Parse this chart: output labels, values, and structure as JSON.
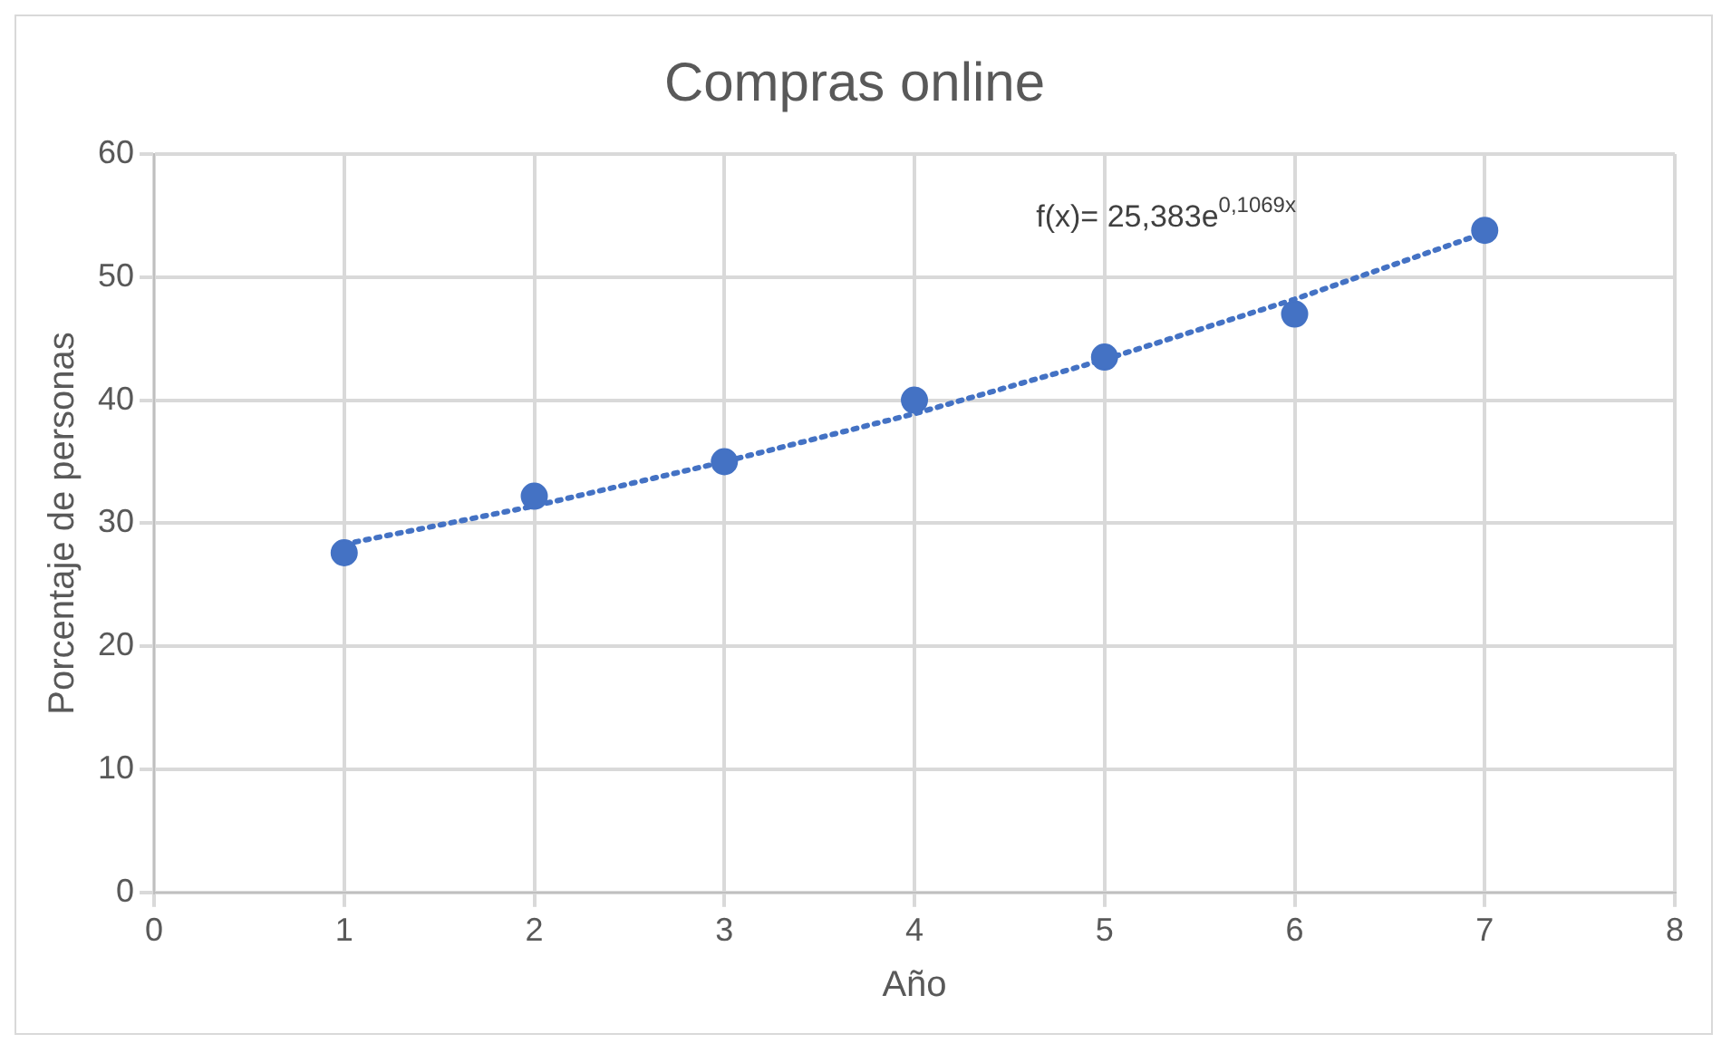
{
  "chart_data": {
    "type": "scatter",
    "title": "Compras online",
    "xlabel": "Año",
    "ylabel": "Porcentaje de personas",
    "xlim": [
      0,
      8
    ],
    "xticks": [
      0,
      1,
      2,
      3,
      4,
      5,
      6,
      7,
      8
    ],
    "ylim": [
      0,
      60
    ],
    "yticks": [
      0,
      10,
      20,
      30,
      40,
      50,
      60
    ],
    "grid": true,
    "legend": false,
    "series": [
      {
        "color": "#4472c4",
        "marker": "circle",
        "x": [
          1,
          2,
          3,
          4,
          5,
          6,
          7
        ],
        "values": [
          27.6,
          32.2,
          35.0,
          40.0,
          43.5,
          47.0,
          53.8
        ]
      },
      {
        "type": "line",
        "color": "#4472c4",
        "marker": "none",
        "line_style": "dotted",
        "x": [
          1,
          2,
          3,
          4,
          5,
          6,
          7
        ],
        "values": [
          28.3,
          31.4,
          35.0,
          38.9,
          43.3,
          48.2,
          53.6
        ]
      }
    ],
    "annotations": [
      "f(x)= 25,383e$^{0,1069x}$"
    ]
  }
}
